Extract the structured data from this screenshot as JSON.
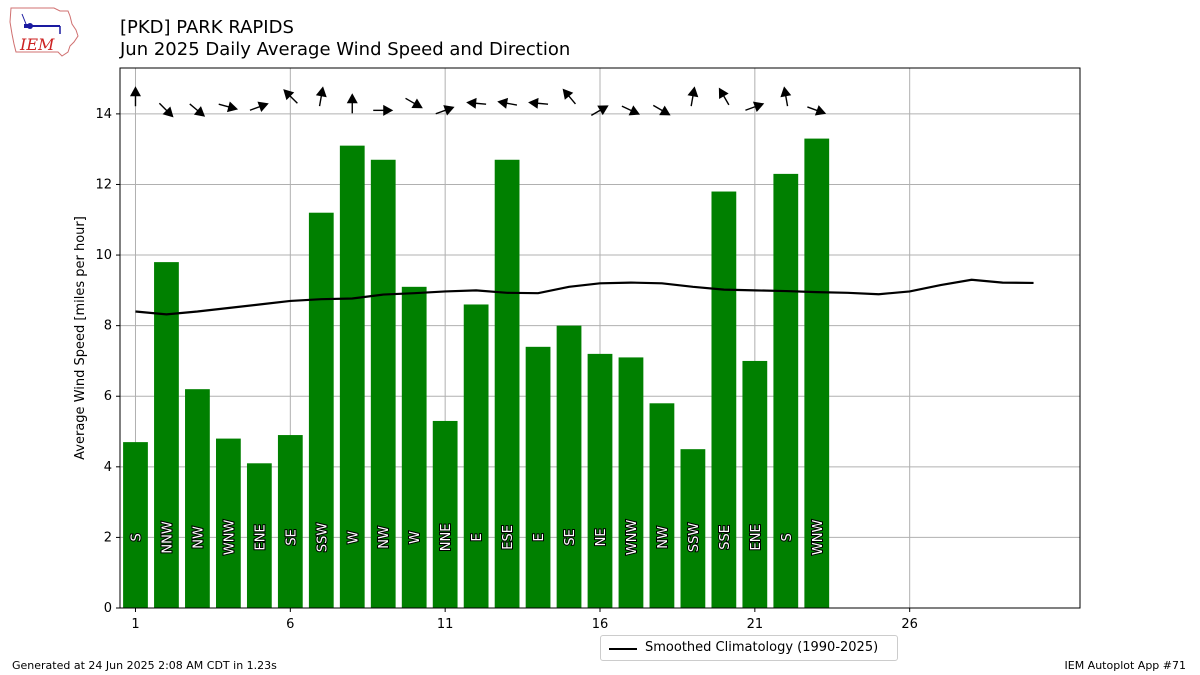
{
  "header": {
    "title_line1": "[PKD] PARK RAPIDS",
    "title_line2": "Jun 2025 Daily Average Wind Speed and Direction",
    "logo_text": "IEM"
  },
  "footer": {
    "generated": "Generated at 24 Jun 2025 2:08 AM CDT in 1.23s",
    "app": "IEM Autoplot App #71"
  },
  "legend": {
    "climatology_label": "Smoothed Climatology (1990-2025)"
  },
  "colors": {
    "bar": "#008000",
    "line": "#000000",
    "grid": "#b0b0b0"
  },
  "chart_data": {
    "type": "bar",
    "ylabel": "Average Wind Speed [miles per hour]",
    "xlabel": "",
    "xlim": [
      0.5,
      31.5
    ],
    "ylim": [
      0,
      15.3
    ],
    "xticks": [
      1,
      6,
      11,
      16,
      21,
      26
    ],
    "yticks": [
      0,
      2,
      4,
      6,
      8,
      10,
      12,
      14
    ],
    "grid": true,
    "legend_position": "bottom-center",
    "days": [
      1,
      2,
      3,
      4,
      5,
      6,
      7,
      8,
      9,
      10,
      11,
      12,
      13,
      14,
      15,
      16,
      17,
      18,
      19,
      20,
      21,
      22,
      23
    ],
    "speed": [
      4.7,
      9.8,
      6.2,
      4.8,
      4.1,
      4.9,
      11.2,
      13.1,
      12.7,
      9.1,
      5.3,
      8.6,
      12.7,
      7.4,
      8.0,
      7.2,
      7.1,
      5.8,
      4.5,
      11.8,
      7.0,
      12.3,
      13.3
    ],
    "direction": [
      "S",
      "NNW",
      "NW",
      "WNW",
      "ENE",
      "SE",
      "SSW",
      "W",
      "NW",
      "W",
      "NNE",
      "E",
      "ESE",
      "E",
      "SE",
      "NE",
      "WNW",
      "NW",
      "SSW",
      "SSE",
      "ENE",
      "S",
      "WNW"
    ],
    "arrow_angle_deg": [
      90,
      -45,
      -40,
      -15,
      20,
      135,
      80,
      90,
      0,
      -30,
      20,
      175,
      170,
      175,
      130,
      30,
      -25,
      -30,
      80,
      120,
      20,
      100,
      -20
    ],
    "arrow_y": [
      14.5,
      14.1,
      14.1,
      14.2,
      14.2,
      14.5,
      14.5,
      14.3,
      14.1,
      14.3,
      14.1,
      14.3,
      14.3,
      14.3,
      14.5,
      14.1,
      14.1,
      14.1,
      14.5,
      14.5,
      14.2,
      14.5,
      14.1
    ],
    "climatology_x": [
      1,
      2,
      3,
      4,
      5,
      6,
      7,
      8,
      9,
      10,
      11,
      12,
      13,
      14,
      15,
      16,
      17,
      18,
      19,
      20,
      21,
      22,
      23,
      24,
      25,
      26,
      27,
      28,
      29,
      30
    ],
    "climatology": [
      8.4,
      8.32,
      8.4,
      8.5,
      8.6,
      8.7,
      8.75,
      8.77,
      8.88,
      8.92,
      8.97,
      9.0,
      8.93,
      8.92,
      9.1,
      9.2,
      9.22,
      9.2,
      9.1,
      9.02,
      9.0,
      8.98,
      8.95,
      8.93,
      8.89,
      8.97,
      9.15,
      9.3,
      9.22,
      9.21
    ]
  }
}
